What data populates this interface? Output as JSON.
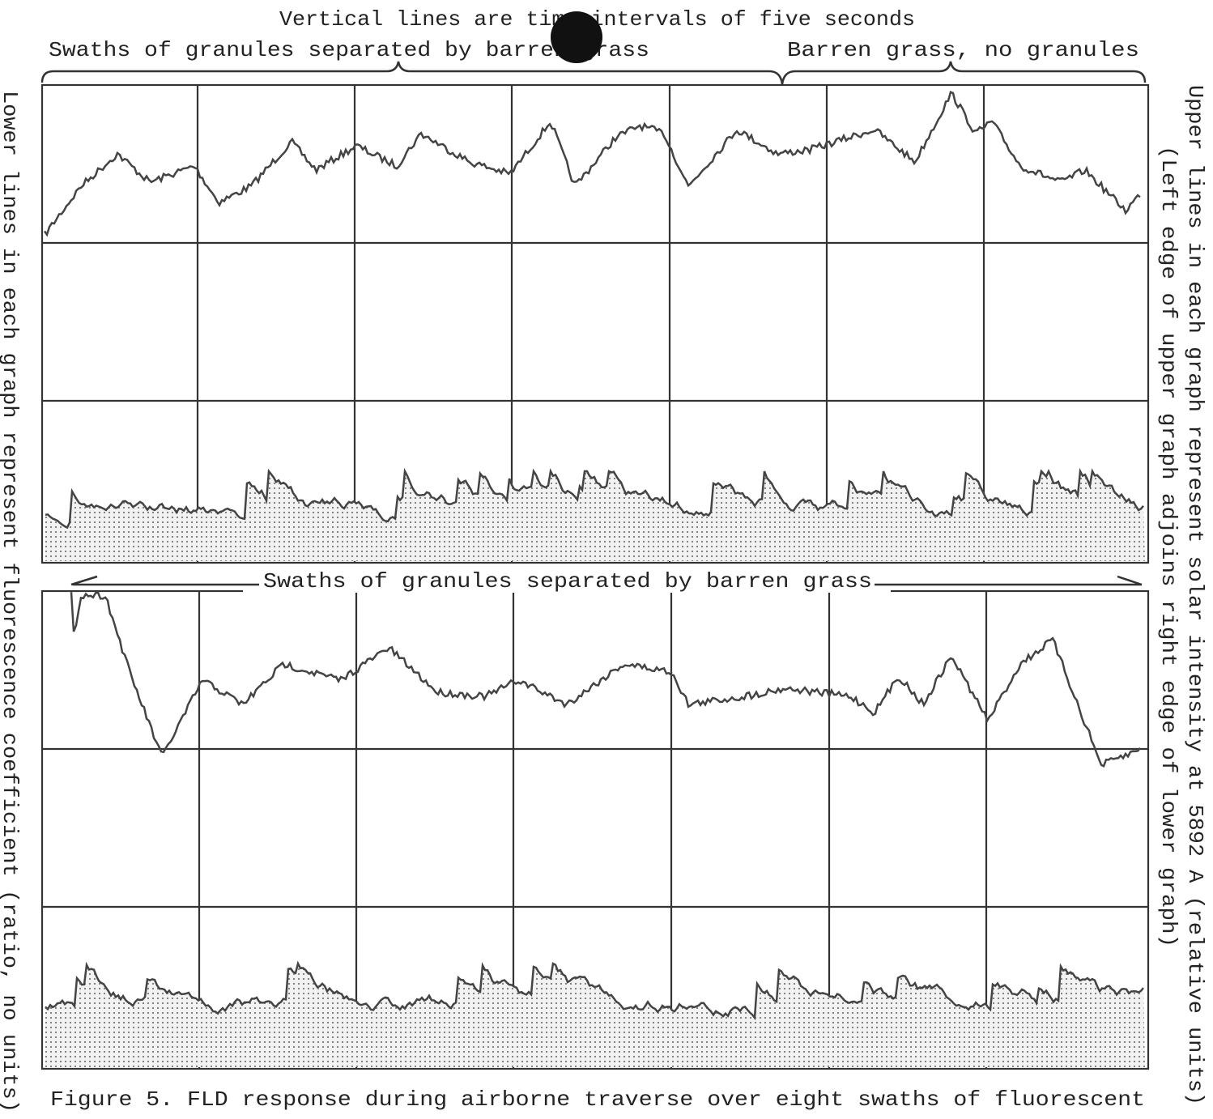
{
  "header": {
    "title": "Vertical lines are time intervals of five seconds",
    "upper_graph_labels": [
      "Swaths of granules separated by barren grass",
      "Barren grass, no granules"
    ]
  },
  "lower_graph_label": "Swaths of granules separated by barren grass",
  "left_axis_label": "Lower lines in each graph represent fluorescence coefficient (ratio, no units)",
  "right_axis_label": [
    "Upper lines in each graph represent solar intensity at 5892 A (relative units)",
    "(Left edge of upper graph adjoins right edge of lower graph)"
  ],
  "caption": "Figure 5. FLD response during airborne traverse over eight swaths of fluorescent"
}
